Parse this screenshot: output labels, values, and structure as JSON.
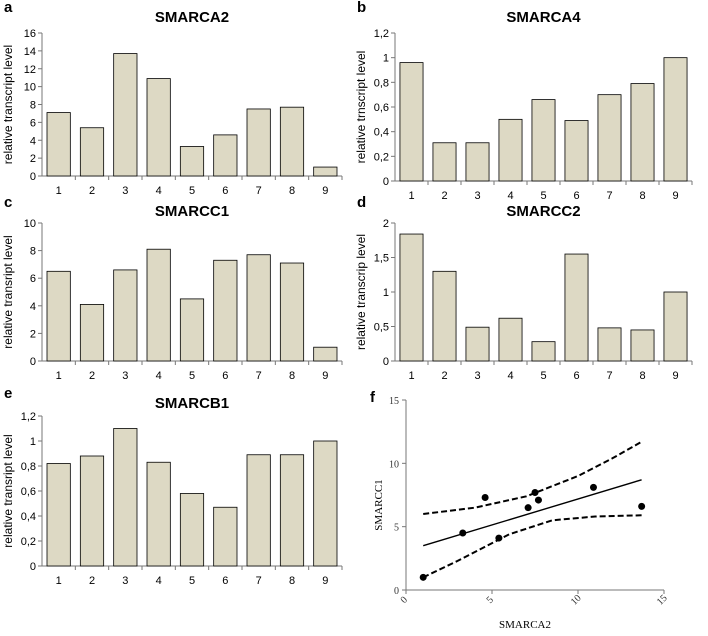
{
  "chart_data": [
    {
      "panel": "a",
      "type": "bar",
      "title": "SMARCA2",
      "ylabel": "relative transcript level",
      "categories": [
        "1",
        "2",
        "3",
        "4",
        "5",
        "6",
        "7",
        "8",
        "9"
      ],
      "values": [
        7.1,
        5.4,
        13.7,
        10.9,
        3.3,
        4.6,
        7.5,
        7.7,
        1.0
      ],
      "ylim": [
        0,
        16
      ],
      "yticks": [
        "0",
        "2",
        "4",
        "6",
        "8",
        "10",
        "12",
        "14",
        "16"
      ]
    },
    {
      "panel": "b",
      "type": "bar",
      "title": "SMARCA4",
      "ylabel": "relative trnscript level",
      "categories": [
        "1",
        "2",
        "3",
        "4",
        "5",
        "6",
        "7",
        "8",
        "9"
      ],
      "values": [
        0.96,
        0.31,
        0.31,
        0.5,
        0.66,
        0.49,
        0.7,
        0.79,
        1.0
      ],
      "ylim": [
        0,
        1.2
      ],
      "yticks": [
        "0",
        "0,2",
        "0,4",
        "0,6",
        "0,8",
        "1",
        "1,2"
      ]
    },
    {
      "panel": "c",
      "type": "bar",
      "title": "SMARCC1",
      "ylabel": "relative transript level",
      "categories": [
        "1",
        "2",
        "3",
        "4",
        "5",
        "6",
        "7",
        "8",
        "9"
      ],
      "values": [
        6.5,
        4.1,
        6.6,
        8.1,
        4.5,
        7.3,
        7.7,
        7.1,
        1.0
      ],
      "ylim": [
        0,
        10
      ],
      "yticks": [
        "0",
        "2",
        "4",
        "6",
        "8",
        "10"
      ]
    },
    {
      "panel": "d",
      "type": "bar",
      "title": "SMARCC2",
      "ylabel": "relative transcrip level",
      "categories": [
        "1",
        "2",
        "3",
        "4",
        "5",
        "6",
        "7",
        "8",
        "9"
      ],
      "values": [
        1.84,
        1.3,
        0.49,
        0.62,
        0.28,
        1.55,
        0.48,
        0.45,
        1.0
      ],
      "ylim": [
        0,
        2
      ],
      "yticks": [
        "0",
        "0,5",
        "1",
        "1,5",
        "2"
      ]
    },
    {
      "panel": "e",
      "type": "bar",
      "title": "SMARCB1",
      "ylabel": "relative transript level",
      "categories": [
        "1",
        "2",
        "3",
        "4",
        "5",
        "6",
        "7",
        "8",
        "9"
      ],
      "values": [
        0.82,
        0.88,
        1.1,
        0.83,
        0.58,
        0.47,
        0.89,
        0.89,
        1.0
      ],
      "ylim": [
        0,
        1.2
      ],
      "yticks": [
        "0",
        "0,2",
        "0,4",
        "0,6",
        "0,8",
        "1",
        "1,2"
      ]
    },
    {
      "panel": "f",
      "type": "scatter",
      "xlabel": "SMARCA2",
      "ylabel": "SMARCC1",
      "xlim": [
        0,
        15
      ],
      "ylim": [
        0,
        15
      ],
      "xticks": [
        "0",
        "5",
        "10",
        "15"
      ],
      "yticks": [
        "0",
        "5",
        "10",
        "15"
      ],
      "points": [
        [
          1.0,
          1.0
        ],
        [
          3.3,
          4.5
        ],
        [
          4.6,
          7.3
        ],
        [
          5.4,
          4.1
        ],
        [
          7.1,
          6.5
        ],
        [
          7.5,
          7.7
        ],
        [
          7.7,
          7.1
        ],
        [
          10.9,
          8.1
        ],
        [
          13.7,
          6.6
        ]
      ],
      "fit_line": [
        [
          1.0,
          3.5
        ],
        [
          13.7,
          8.7
        ]
      ],
      "ci_upper": [
        [
          1.0,
          6.0
        ],
        [
          4.0,
          6.5
        ],
        [
          7.0,
          7.4
        ],
        [
          10.0,
          9.0
        ],
        [
          12.0,
          10.4
        ],
        [
          13.7,
          11.7
        ]
      ],
      "ci_lower": [
        [
          1.0,
          1.0
        ],
        [
          3.0,
          2.3
        ],
        [
          6.0,
          4.4
        ],
        [
          8.5,
          5.5
        ],
        [
          11.0,
          5.8
        ],
        [
          13.7,
          5.9
        ]
      ]
    }
  ]
}
